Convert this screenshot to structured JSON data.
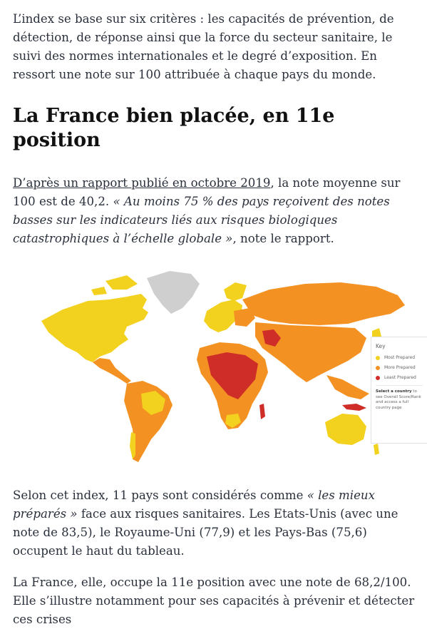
{
  "intro": "L’index se base sur six critères : les capacités de prévention, de détection, de réponse ainsi que la force du secteur sanitaire, le suivi des normes internationales et le degré d’exposition. En ressort une note sur 100 attribuée à chaque pays du monde.",
  "heading": "La France bien placée, en 11e position",
  "para2": {
    "link_text": "D’après un rapport publié en octobre 2019",
    "text_after_link": ", la note moyenne sur 100 est de 40,2. ",
    "quote": "« Au moins 75 % des pays reçoivent des notes basses sur les indicateurs liés aux risques biologiques catastrophiques à l’échelle globale »",
    "tail": ", note le rapport."
  },
  "map_key": {
    "title": "Key",
    "items": [
      {
        "label": "Most Prepared",
        "color": "#f2d21e"
      },
      {
        "label": "More Prepared",
        "color": "#f39222"
      },
      {
        "label": "Least Prepared",
        "color": "#cf2d28"
      }
    ],
    "note_bold": "Select a country",
    "note_rest": " to see Overall Score/Rank and access a full country page"
  },
  "para3": {
    "text_before": "Selon cet index, 11 pays sont considérés comme ",
    "quote": "« les mieux préparés »",
    "text_after": " face aux risques sanitaires. Les Etats-Unis (avec une note de 83,5), le Royaume-Uni (77,9) et les Pays-Bas (75,6) occupent le haut du tableau."
  },
  "para4": "La France, elle, occupe la 11e position avec une note de 68,2/100. Elle s’illustre notamment pour ses capacités à prévenir et détecter ces crises"
}
